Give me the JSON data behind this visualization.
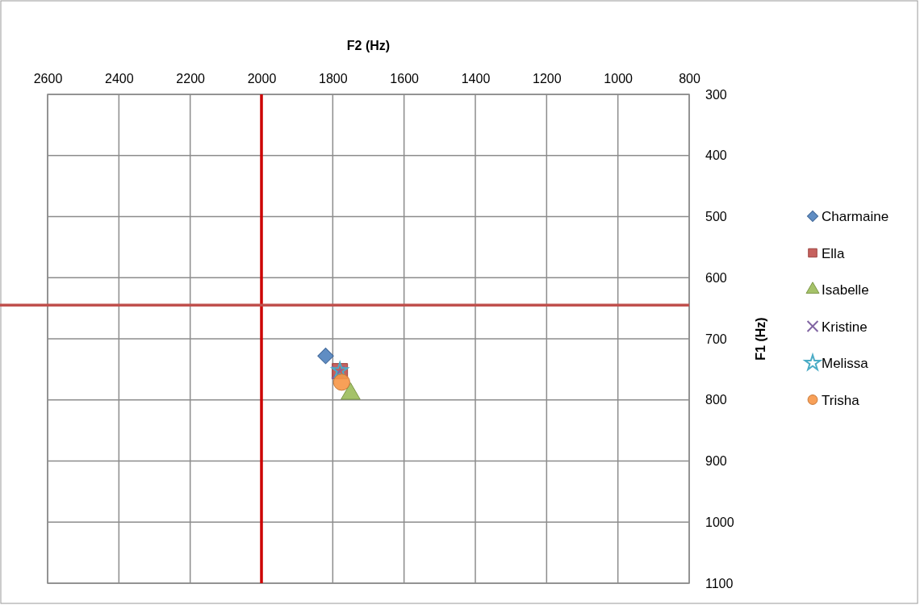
{
  "chart_data": {
    "type": "scatter",
    "xlabel": "F2 (Hz)",
    "ylabel": "F1 (Hz)",
    "xlim": [
      2600,
      800
    ],
    "xticks": [
      2600,
      2400,
      2200,
      2000,
      1800,
      1600,
      1400,
      1200,
      1000,
      800
    ],
    "ylim": [
      1100,
      300
    ],
    "yticks": [
      300,
      400,
      500,
      600,
      700,
      800,
      900,
      1000,
      1100
    ],
    "grid": true,
    "legend": "right",
    "series": [
      {
        "name": "Charmaine",
        "color": "#4f81bd",
        "marker": "diamond",
        "x": [
          1820
        ],
        "values": [
          728
        ]
      },
      {
        "name": "Ella",
        "color": "#c0504d",
        "marker": "square",
        "x": [
          1780
        ],
        "values": [
          753
        ]
      },
      {
        "name": "Isabelle",
        "color": "#9bbb59",
        "marker": "triangle",
        "x": [
          1750
        ],
        "values": [
          790
        ]
      },
      {
        "name": "Kristine",
        "color": "#8064a2",
        "marker": "cross",
        "x": [
          1785
        ],
        "values": [
          755
        ]
      },
      {
        "name": "Melissa",
        "color": "#4bacc6",
        "marker": "star",
        "x": [
          1780
        ],
        "values": [
          752
        ]
      },
      {
        "name": "Trisha",
        "color": "#f79646",
        "marker": "circle",
        "x": [
          1775
        ],
        "values": [
          771
        ]
      }
    ],
    "ref_lines": [
      {
        "axis": "x",
        "value": 2000,
        "color": "#cc0000"
      },
      {
        "axis": "y",
        "value": 645,
        "color": "#c0504d"
      }
    ]
  }
}
